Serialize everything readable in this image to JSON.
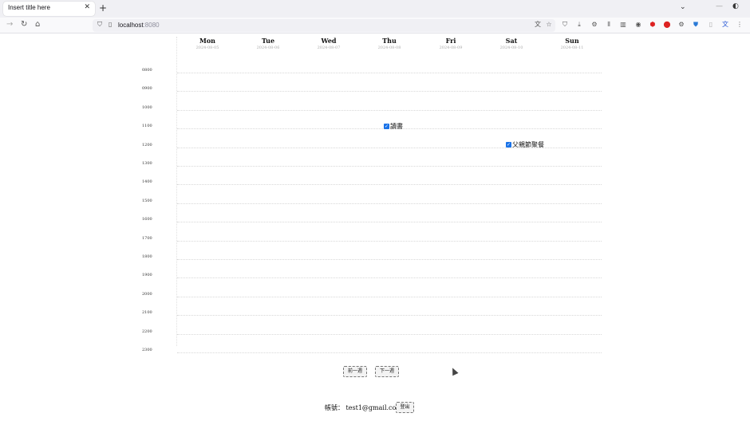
{
  "browser": {
    "tab_title": "Insert title here",
    "url_host": "localhost",
    "url_port": ":8080"
  },
  "days": [
    {
      "name": "Mon",
      "date": "2024-08-05"
    },
    {
      "name": "Tue",
      "date": "2024-08-06"
    },
    {
      "name": "Wed",
      "date": "2024-08-07"
    },
    {
      "name": "Thu",
      "date": "2024-08-08"
    },
    {
      "name": "Fri",
      "date": "2024-08-09"
    },
    {
      "name": "Sat",
      "date": "2024-08-10"
    },
    {
      "name": "Sun",
      "date": "2024-08-11"
    }
  ],
  "hours": [
    "0800",
    "0900",
    "1000",
    "1100",
    "1200",
    "1300",
    "1400",
    "1500",
    "1600",
    "1700",
    "1800",
    "1900",
    "2000",
    "2100",
    "2200",
    "2300"
  ],
  "events": [
    {
      "day": "Thu",
      "start": "1000",
      "label": "讀書",
      "checked": true
    },
    {
      "day": "Sat",
      "start": "1100",
      "label": "父親節聚餐",
      "checked": true
    }
  ],
  "controls": {
    "prev_week": "前一週",
    "next_week": "下一週"
  },
  "account": {
    "label": "帳號：",
    "email": "test1@gmail.com",
    "logout": "登出"
  },
  "colors": {
    "checkbox": "#1a73e8"
  }
}
